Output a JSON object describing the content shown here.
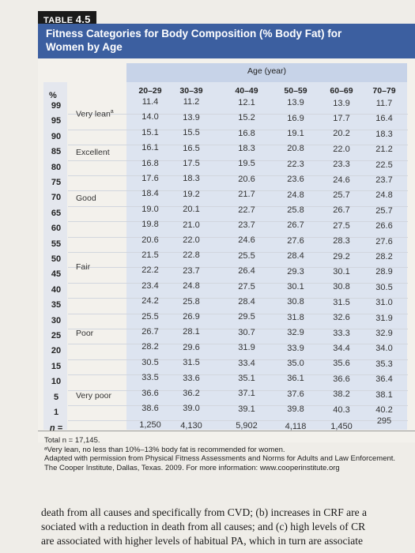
{
  "table": {
    "label_prefix": "TABLE ",
    "label_number": "4.5",
    "title": "Fitness Categories for Body Composition (% Body Fat) for Women by Age",
    "age_header": "Age (year)",
    "pct_header": "%",
    "columns": [
      "20–29",
      "30–39",
      "40–49",
      "50–59",
      "60–69",
      "70–79"
    ],
    "percentiles": [
      "99",
      "95",
      "90",
      "85",
      "80",
      "75",
      "70",
      "65",
      "60",
      "55",
      "50",
      "45",
      "40",
      "35",
      "30",
      "25",
      "20",
      "15",
      "10",
      "5",
      "1"
    ],
    "categories": [
      {
        "label": "Very lean",
        "sup": "a"
      },
      {
        "label": "Excellent"
      },
      {
        "label": "Good"
      },
      {
        "label": "Fair"
      },
      {
        "label": "Poor"
      },
      {
        "label": "Very poor"
      }
    ],
    "rows": [
      [
        "11.4",
        "11.2",
        "12.1",
        "13.9",
        "13.9",
        "11.7"
      ],
      [
        "14.0",
        "13.9",
        "15.2",
        "16.9",
        "17.7",
        "16.4"
      ],
      [
        "15.1",
        "15.5",
        "16.8",
        "19.1",
        "20.2",
        "18.3"
      ],
      [
        "16.1",
        "16.5",
        "18.3",
        "20.8",
        "22.0",
        "21.2"
      ],
      [
        "16.8",
        "17.5",
        "19.5",
        "22.3",
        "23.3",
        "22.5"
      ],
      [
        "17.6",
        "18.3",
        "20.6",
        "23.6",
        "24.6",
        "23.7"
      ],
      [
        "18.4",
        "19.2",
        "21.7",
        "24.8",
        "25.7",
        "24.8"
      ],
      [
        "19.0",
        "20.1",
        "22.7",
        "25.8",
        "26.7",
        "25.7"
      ],
      [
        "19.8",
        "21.0",
        "23.7",
        "26.7",
        "27.5",
        "26.6"
      ],
      [
        "20.6",
        "22.0",
        "24.6",
        "27.6",
        "28.3",
        "27.6"
      ],
      [
        "21.5",
        "22.8",
        "25.5",
        "28.4",
        "29.2",
        "28.2"
      ],
      [
        "22.2",
        "23.7",
        "26.4",
        "29.3",
        "30.1",
        "28.9"
      ],
      [
        "23.4",
        "24.8",
        "27.5",
        "30.1",
        "30.8",
        "30.5"
      ],
      [
        "24.2",
        "25.8",
        "28.4",
        "30.8",
        "31.5",
        "31.0"
      ],
      [
        "25.5",
        "26.9",
        "29.5",
        "31.8",
        "32.6",
        "31.9"
      ],
      [
        "26.7",
        "28.1",
        "30.7",
        "32.9",
        "33.3",
        "32.9"
      ],
      [
        "28.2",
        "29.6",
        "31.9",
        "33.9",
        "34.4",
        "34.0"
      ],
      [
        "30.5",
        "31.5",
        "33.4",
        "35.0",
        "35.6",
        "35.3"
      ],
      [
        "33.5",
        "33.6",
        "35.1",
        "36.1",
        "36.6",
        "36.4"
      ],
      [
        "36.6",
        "36.2",
        "37.1",
        "37.6",
        "38.2",
        "38.1"
      ],
      [
        "38.6",
        "39.0",
        "39.1",
        "39.8",
        "40.3",
        "40.2"
      ]
    ],
    "n_label": "n =",
    "n_values": [
      "1,250",
      "4,130",
      "5,902",
      "4,118",
      "1,450",
      "295"
    ]
  },
  "footnotes": {
    "total": "Total n = 17,145.",
    "note_a": "ᵃVery lean, no less than 10%–13% body fat is recommended for women.",
    "source_1": "Adapted with permission from Physical Fitness Assessments and Norms for Adults and Law Enforcement.",
    "source_2": "The Cooper Institute, Dallas, Texas. 2009. For more information: www.cooperinstitute.org"
  },
  "body_text": [
    "death from all causes and specifically from CVD; (b) increases in CRF are a",
    "sociated with a reduction in death from all causes; and (c) high levels of CR",
    "are associated with higher levels of habitual PA, which in turn are associate"
  ],
  "colors": {
    "title_band": "#3c5fa0",
    "age_band": "#c7d3e8",
    "body_shade": "#dde4f0"
  }
}
